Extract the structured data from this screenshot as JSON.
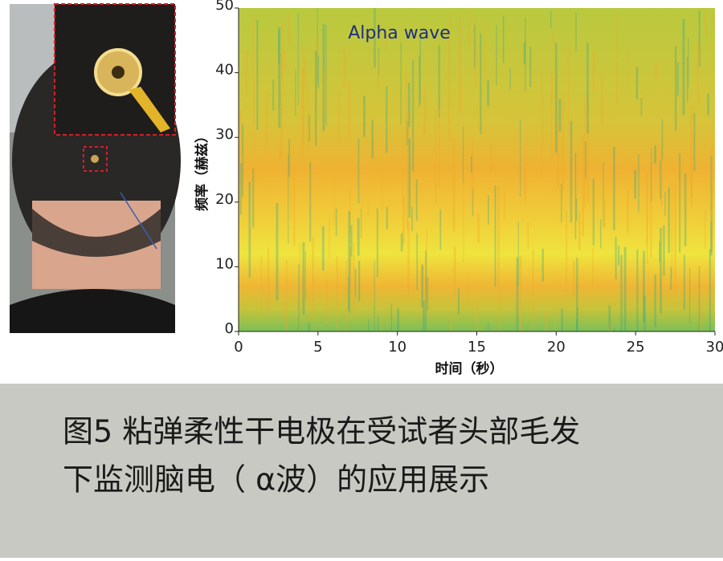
{
  "chart_data": {
    "type": "spectrogram",
    "annotation": "Alpha wave",
    "x_label": "时间（秒）",
    "y_label": "频率（赫兹）",
    "xlim": [
      0,
      30
    ],
    "xticks": [
      0,
      5,
      10,
      15,
      20,
      25,
      30
    ],
    "ylim": [
      0,
      50
    ],
    "yticks": [
      0,
      10,
      20,
      30,
      40,
      50
    ]
  },
  "caption": [
    "图5  粘弹柔性干电极在受试者头部毛发",
    "下监测脑电（ α波）的应用展示"
  ]
}
